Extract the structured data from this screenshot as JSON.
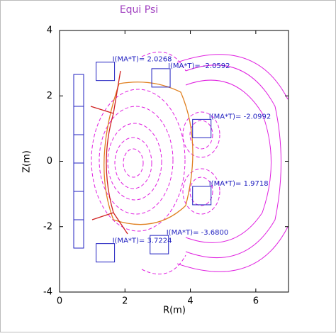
{
  "chart_data": {
    "type": "coils",
    "title": "Equi Psi",
    "x_label": "R(m)",
    "y_label": "Z(m)",
    "xlim": [
      0,
      7
    ],
    "ylim": [
      -4,
      4
    ],
    "xticks": [
      0,
      2,
      4,
      6
    ],
    "yticks": [
      -4,
      -2,
      0,
      2,
      4
    ],
    "color": "#2020c0",
    "coils": [
      {
        "r": 1.4,
        "z": 2.75,
        "label": "I(MA*T)= 2.0268"
      },
      {
        "r": 3.1,
        "z": 2.55,
        "label": "I(MA*T)= -2.0592"
      },
      {
        "r": 4.35,
        "z": 1.0,
        "label": "I(MA*T)= -2.0992"
      },
      {
        "r": 4.35,
        "z": -1.05,
        "label": "I(MA*T)= 1.9718"
      },
      {
        "r": 3.05,
        "z": -2.55,
        "label": "I(MA*T)= -3.6800"
      },
      {
        "r": 1.4,
        "z": -2.8,
        "label": "I(MA*T)= 3.7224"
      }
    ]
  }
}
